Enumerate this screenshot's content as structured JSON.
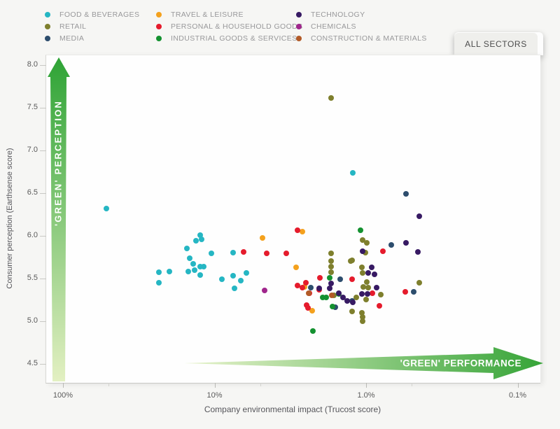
{
  "button": {
    "label": "ALL SECTORS"
  },
  "legend": {
    "columns": [
      {
        "x": 64,
        "items": [
          {
            "label": "FOOD & BEVERAGES",
            "color": "#25b6c3"
          },
          {
            "label": "RETAIL",
            "color": "#7e7f2d"
          },
          {
            "label": "MEDIA",
            "color": "#2d4d6d"
          }
        ]
      },
      {
        "x": 223,
        "items": [
          {
            "label": "TRAVEL & LEISURE",
            "color": "#f4a11d"
          },
          {
            "label": "PERSONAL & HOUSEHOLD GOODS",
            "color": "#e51b2c"
          },
          {
            "label": "INDUSTRIAL GOODS & SERVICES",
            "color": "#149130"
          }
        ]
      },
      {
        "x": 423,
        "items": [
          {
            "label": "TECHNOLOGY",
            "color": "#371a63"
          },
          {
            "label": "CHEMICALS",
            "color": "#a0268c"
          },
          {
            "label": "CONSTRUCTION & MATERIALS",
            "color": "#b25a27"
          }
        ]
      }
    ]
  },
  "chart_data": {
    "type": "scatter",
    "xlabel": "Company environmental impact (Trucost score)",
    "ylabel": "Consumer perception (Earthsense score)",
    "x_axis": {
      "scale": "logarithmic-reversed",
      "major_ticks": [
        {
          "label": "100%",
          "percent": 100
        },
        {
          "label": "10%",
          "percent": 10
        },
        {
          "label": "1.0%",
          "percent": 1
        },
        {
          "label": "0.1%",
          "percent": 0.1
        }
      ],
      "minor_tick_percents": [
        50,
        5,
        0.5
      ],
      "range_percent": [
        100,
        0.1
      ]
    },
    "y_axis": {
      "ticks": [
        8.0,
        7.5,
        7.0,
        6.5,
        6.0,
        5.5,
        5.0,
        4.5
      ],
      "range": [
        4.5,
        8.0
      ]
    },
    "annotations": {
      "y_arrow_label": "'GREEN' PERCEPTION",
      "x_arrow_label": "'GREEN' PERFORMANCE",
      "arrow_color_dark": "#2ea335",
      "arrow_color_light": "#e3f0c2"
    },
    "series": [
      {
        "name": "FOOD & BEVERAGES",
        "color": "#25b6c3",
        "points": [
          [
            52,
            6.33
          ],
          [
            12.6,
            6.02
          ],
          [
            12.3,
            5.97
          ],
          [
            13.4,
            5.95
          ],
          [
            15.4,
            5.86
          ],
          [
            10.6,
            5.8
          ],
          [
            7.6,
            5.81
          ],
          [
            14.7,
            5.75
          ],
          [
            14,
            5.68
          ],
          [
            12.6,
            5.65
          ],
          [
            11.9,
            5.65
          ],
          [
            13.7,
            5.61
          ],
          [
            15.1,
            5.59
          ],
          [
            12.6,
            5.55
          ],
          [
            23.5,
            5.58
          ],
          [
            20.1,
            5.59
          ],
          [
            23.5,
            5.46
          ],
          [
            9,
            5.5
          ],
          [
            7.6,
            5.54
          ],
          [
            6.2,
            5.57
          ],
          [
            6.8,
            5.48
          ],
          [
            7.5,
            5.39
          ],
          [
            1.24,
            6.75
          ]
        ]
      },
      {
        "name": "RETAIL",
        "color": "#7e7f2d",
        "points": [
          [
            1.72,
            7.62
          ],
          [
            1.72,
            5.8
          ],
          [
            1.72,
            5.71
          ],
          [
            1.72,
            5.65
          ],
          [
            1.72,
            5.58
          ],
          [
            1.28,
            5.71
          ],
          [
            1.07,
            5.96
          ],
          [
            1.0,
            5.93
          ],
          [
            1.02,
            5.81
          ],
          [
            1.25,
            5.72
          ],
          [
            1.08,
            5.64
          ],
          [
            1.07,
            5.57
          ],
          [
            1.0,
            5.47
          ],
          [
            1.06,
            5.41
          ],
          [
            0.98,
            5.4
          ],
          [
            0.81,
            5.32
          ],
          [
            1.17,
            5.29
          ],
          [
            1.01,
            5.26
          ],
          [
            1.64,
            5.31
          ],
          [
            1.25,
            5.12
          ],
          [
            1.08,
            5.11
          ],
          [
            1.07,
            5.06
          ],
          [
            1.07,
            5.01
          ],
          [
            0.45,
            5.46
          ]
        ]
      },
      {
        "name": "MEDIA",
        "color": "#2d4d6d",
        "points": [
          [
            0.55,
            6.5
          ],
          [
            1.5,
            5.5
          ],
          [
            2.34,
            5.4
          ],
          [
            0.69,
            5.9
          ],
          [
            0.49,
            5.35
          ],
          [
            1.25,
            5.25
          ],
          [
            1.62,
            5.17
          ]
        ]
      },
      {
        "name": "TRAVEL & LEISURE",
        "color": "#f4a11d",
        "points": [
          [
            4.9,
            5.98
          ],
          [
            2.66,
            6.06
          ],
          [
            2.93,
            5.64
          ],
          [
            2.58,
            5.41
          ],
          [
            2.29,
            5.13
          ]
        ]
      },
      {
        "name": "PERSONAL & HOUSEHOLD GOODS",
        "color": "#e51b2c",
        "points": [
          [
            6.5,
            5.82
          ],
          [
            4.6,
            5.8
          ],
          [
            3.4,
            5.8
          ],
          [
            2.87,
            6.07
          ],
          [
            2.04,
            5.52
          ],
          [
            2.87,
            5.43
          ],
          [
            2.66,
            5.4
          ],
          [
            2.52,
            5.46
          ],
          [
            2.39,
            5.34
          ],
          [
            2.5,
            5.2
          ],
          [
            2.44,
            5.16
          ],
          [
            2.06,
            5.38
          ],
          [
            1.25,
            5.5
          ],
          [
            0.78,
            5.83
          ],
          [
            0.92,
            5.34
          ],
          [
            0.83,
            5.19
          ],
          [
            0.56,
            5.35
          ]
        ]
      },
      {
        "name": "INDUSTRIAL GOODS & SERVICES",
        "color": "#149130",
        "points": [
          [
            1.1,
            6.07
          ],
          [
            1.76,
            5.52
          ],
          [
            1.96,
            5.29
          ],
          [
            1.85,
            5.29
          ],
          [
            1.53,
            5.33
          ],
          [
            1.68,
            5.18
          ],
          [
            2.27,
            4.89
          ]
        ]
      },
      {
        "name": "TECHNOLOGY",
        "color": "#371a63",
        "points": [
          [
            1.72,
            5.45
          ],
          [
            2.06,
            5.39
          ],
          [
            1.76,
            5.39
          ],
          [
            1.53,
            5.34
          ],
          [
            1.44,
            5.29
          ],
          [
            1.35,
            5.25
          ],
          [
            1.24,
            5.23
          ],
          [
            1.07,
            5.83
          ],
          [
            0.93,
            5.64
          ],
          [
            0.98,
            5.57
          ],
          [
            0.89,
            5.56
          ],
          [
            0.86,
            5.4
          ],
          [
            1.08,
            5.33
          ],
          [
            0.99,
            5.33
          ],
          [
            0.55,
            5.93
          ],
          [
            0.46,
            5.82
          ],
          [
            0.45,
            6.24
          ]
        ]
      },
      {
        "name": "CHEMICALS",
        "color": "#a0268c",
        "points": [
          [
            4.7,
            5.37
          ]
        ]
      },
      {
        "name": "CONSTRUCTION & MATERIALS",
        "color": "#b25a27",
        "points": [
          [
            2.42,
            5.34
          ],
          [
            1.71,
            5.31
          ]
        ]
      }
    ]
  }
}
